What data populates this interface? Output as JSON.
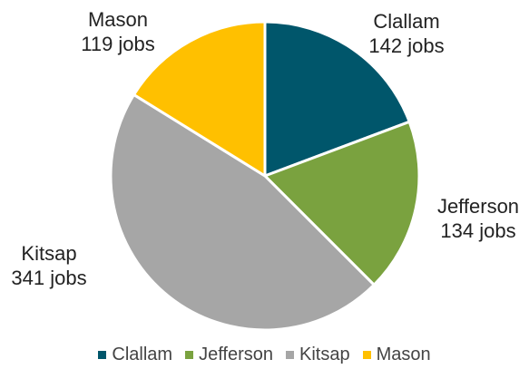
{
  "chart_data": {
    "type": "pie",
    "categories": [
      "Clallam",
      "Jefferson",
      "Kitsap",
      "Mason"
    ],
    "values": [
      142,
      134,
      341,
      119
    ],
    "unit": "jobs",
    "colors": [
      "#00566b",
      "#7aa23f",
      "#a6a6a6",
      "#ffc000"
    ],
    "labels": [
      {
        "name": "Clallam",
        "value": "142 jobs"
      },
      {
        "name": "Jefferson",
        "value": "134 jobs"
      },
      {
        "name": "Kitsap",
        "value": "341 jobs"
      },
      {
        "name": "Mason",
        "value": "119 jobs"
      }
    ],
    "legend": {
      "placement": "bottom",
      "entries": [
        "Clallam",
        "Jefferson",
        "Kitsap",
        "Mason"
      ]
    },
    "start_angle": "12 o'clock",
    "direction": "clockwise"
  }
}
